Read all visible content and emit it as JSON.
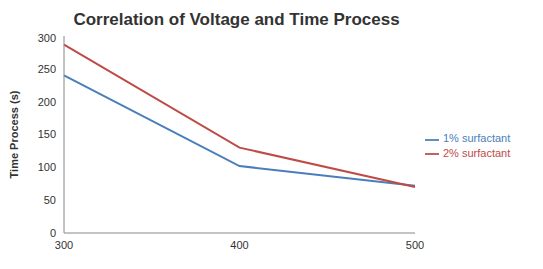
{
  "chart_data": {
    "type": "line",
    "title": "Correlation of Voltage and Time Process",
    "y_label": "Time Process (s)",
    "categories": [
      "300",
      "400",
      "500"
    ],
    "series": [
      {
        "name": "1% surfactant",
        "color": "#4a7ebb",
        "values": [
          240,
          102,
          72
        ]
      },
      {
        "name": "2% surfactant",
        "color": "#be4b48",
        "values": [
          287,
          130,
          70
        ]
      }
    ],
    "ylim": [
      0,
      300
    ],
    "yticks": [
      0,
      50,
      100,
      150,
      200,
      250,
      300
    ],
    "grid": false,
    "legend": "right",
    "marker": "none"
  }
}
